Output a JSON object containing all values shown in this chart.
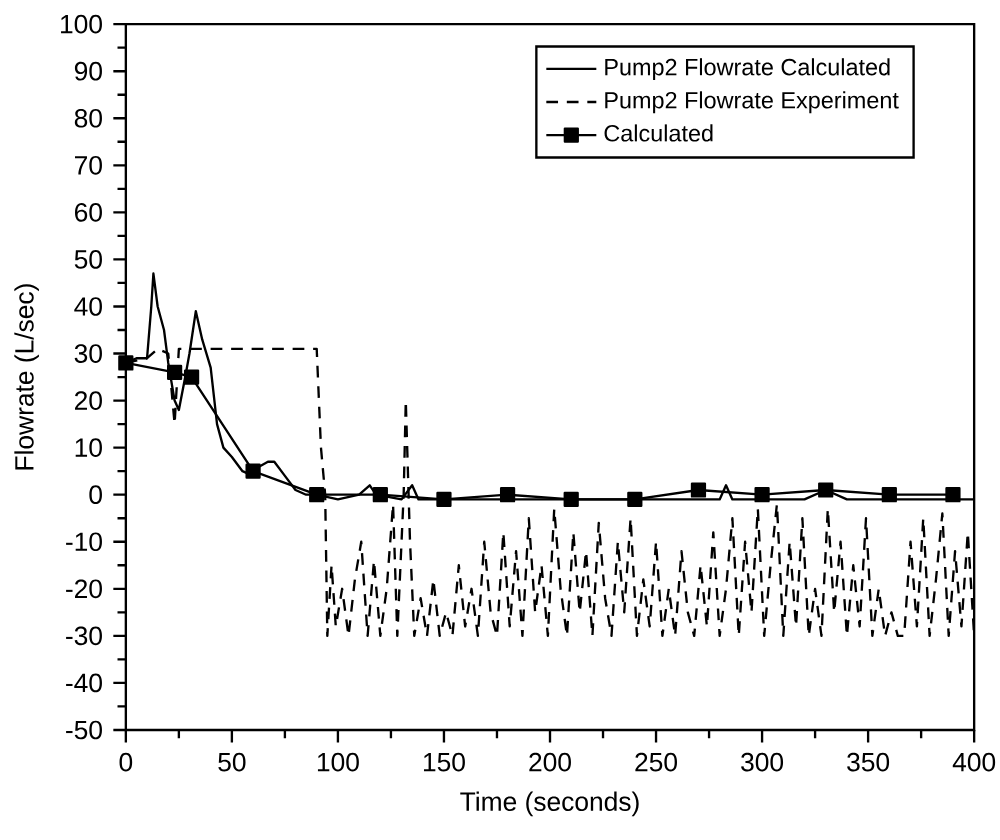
{
  "chart_data": {
    "type": "line",
    "xlabel": "Time (seconds)",
    "ylabel": "Flowrate (L/sec)",
    "xlim": [
      0,
      400
    ],
    "ylim": [
      -50,
      100
    ],
    "xticks": [
      0,
      50,
      100,
      150,
      200,
      250,
      300,
      350,
      400
    ],
    "yticks": [
      -50,
      -40,
      -30,
      -20,
      -10,
      0,
      10,
      20,
      30,
      40,
      50,
      60,
      70,
      80,
      90,
      100
    ],
    "legend": "top right",
    "series": [
      {
        "name": "Pump2 Flowrate Calculated",
        "color": "#000000",
        "line_style": "solid",
        "marker": "none",
        "x": [
          0,
          5,
          10,
          12,
          13,
          15,
          18,
          20,
          23,
          25,
          28,
          30,
          33,
          36,
          40,
          43,
          46,
          50,
          55,
          60,
          63,
          67,
          70,
          75,
          80,
          85,
          90,
          100,
          110,
          115,
          118,
          130,
          135,
          138,
          150,
          200,
          280,
          283,
          286,
          300,
          320,
          330,
          340,
          400
        ],
        "values": [
          28,
          29,
          29,
          40,
          47,
          40,
          35,
          28,
          20,
          18,
          25,
          30,
          39,
          33,
          27,
          15,
          10,
          8,
          5,
          4,
          6,
          7,
          7,
          4,
          1,
          0,
          0,
          -1,
          0,
          2,
          0,
          -1,
          2,
          -1,
          -1,
          -1,
          -1,
          2,
          -1,
          -1,
          -1,
          1,
          -1,
          -1
        ]
      },
      {
        "name": "Pump2 Flowrate Experiment",
        "color": "#000000",
        "line_style": "dashed",
        "marker": "none",
        "x": [
          0,
          10,
          15,
          20,
          23,
          25,
          90,
          92,
          94,
          95,
          97,
          99,
          102,
          105,
          108,
          111,
          114,
          117,
          120,
          123,
          126,
          128,
          131,
          132,
          134,
          136,
          139,
          142,
          145,
          148,
          151,
          154,
          157,
          160,
          163,
          166,
          169,
          172,
          175,
          178,
          181,
          184,
          187,
          190,
          193,
          196,
          199,
          202,
          205,
          208,
          211,
          214,
          217,
          220,
          223,
          226,
          229,
          232,
          235,
          238,
          241,
          244,
          247,
          250,
          253,
          256,
          259,
          262,
          265,
          268,
          271,
          274,
          277,
          280,
          283,
          286,
          289,
          292,
          295,
          298,
          301,
          304,
          307,
          310,
          313,
          316,
          319,
          322,
          325,
          328,
          331,
          334,
          337,
          340,
          343,
          346,
          349,
          352,
          355,
          358,
          361,
          364,
          367,
          370,
          373,
          376,
          379,
          382,
          385,
          388,
          391,
          394,
          397,
          400
        ],
        "values": [
          28,
          29,
          31,
          30,
          15,
          31,
          31,
          10,
          0,
          -30,
          -15,
          -28,
          -20,
          -30,
          -18,
          -10,
          -30,
          -14,
          -30,
          -20,
          -2,
          -30,
          0,
          20,
          -10,
          -30,
          -22,
          -30,
          -18,
          -30,
          -25,
          -30,
          -15,
          -28,
          -20,
          -30,
          -10,
          -25,
          -30,
          -8,
          -28,
          -12,
          -30,
          -5,
          -25,
          -15,
          -30,
          -3,
          -20,
          -30,
          -8,
          -25,
          -12,
          -30,
          -6,
          -22,
          -30,
          -10,
          -25,
          -5,
          -30,
          -18,
          -28,
          -10,
          -30,
          -20,
          -30,
          -12,
          -25,
          -30,
          -15,
          -28,
          -8,
          -30,
          -20,
          -5,
          -30,
          -10,
          -25,
          -3,
          -30,
          -15,
          -2,
          -30,
          -10,
          -28,
          -5,
          -30,
          -20,
          -30,
          -3,
          -25,
          -10,
          -30,
          -15,
          -28,
          -5,
          -30,
          -20,
          -30,
          -25,
          -30,
          -30,
          -10,
          -28,
          -5,
          -30,
          -18,
          -4,
          -30,
          -12,
          -28,
          -8,
          -30
        ]
      },
      {
        "name": "Calculated",
        "color": "#000000",
        "line_style": "solid",
        "marker": "square",
        "x": [
          0,
          23,
          31,
          60,
          90,
          120,
          150,
          180,
          210,
          240,
          270,
          300,
          330,
          360,
          390
        ],
        "values": [
          28,
          26,
          25,
          5,
          0,
          0,
          -1,
          0,
          -1,
          -1,
          1,
          0,
          1,
          0,
          0
        ]
      }
    ]
  }
}
